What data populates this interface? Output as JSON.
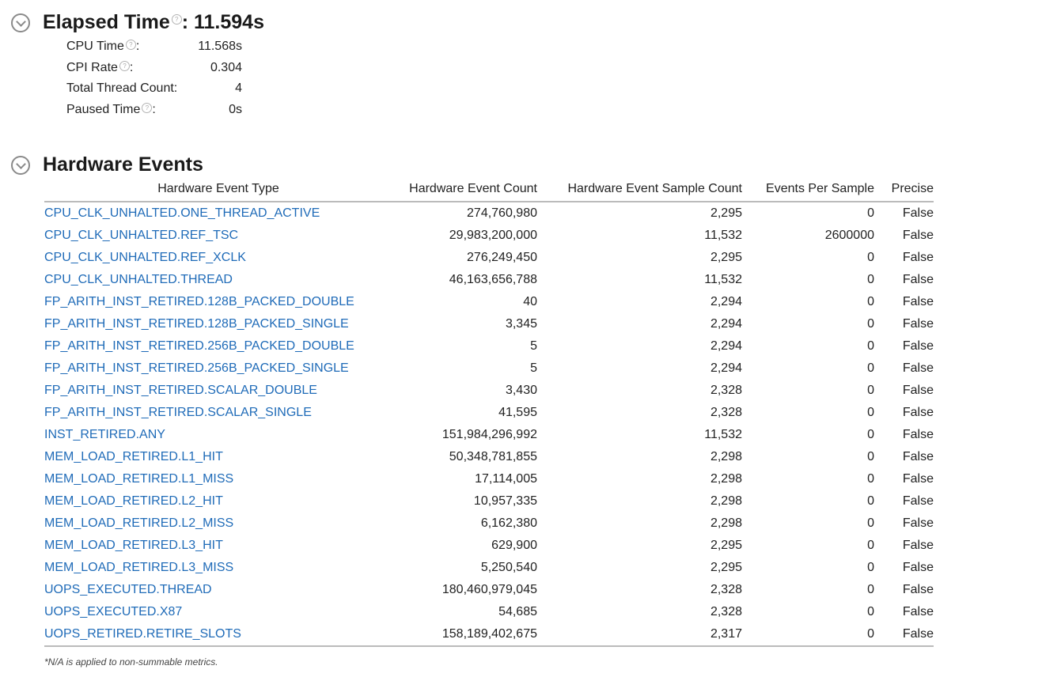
{
  "elapsed": {
    "title": "Elapsed Time",
    "value_text": ": 11.594s",
    "help_glyph": "?",
    "metrics": [
      {
        "label": "CPU Time",
        "has_help": true,
        "value": "11.568s"
      },
      {
        "label": "CPI Rate",
        "has_help": true,
        "value": "0.304"
      },
      {
        "label": "Total Thread Count:",
        "has_help": false,
        "value": "4"
      },
      {
        "label": "Paused Time",
        "has_help": true,
        "value": "0s"
      }
    ]
  },
  "hardware": {
    "title": "Hardware Events",
    "columns": [
      "Hardware Event Type",
      "Hardware Event Count",
      "Hardware Event Sample Count",
      "Events Per Sample",
      "Precise"
    ],
    "rows": [
      [
        "CPU_CLK_UNHALTED.ONE_THREAD_ACTIVE",
        "274,760,980",
        "2,295",
        "0",
        "False"
      ],
      [
        "CPU_CLK_UNHALTED.REF_TSC",
        "29,983,200,000",
        "11,532",
        "2600000",
        "False"
      ],
      [
        "CPU_CLK_UNHALTED.REF_XCLK",
        "276,249,450",
        "2,295",
        "0",
        "False"
      ],
      [
        "CPU_CLK_UNHALTED.THREAD",
        "46,163,656,788",
        "11,532",
        "0",
        "False"
      ],
      [
        "FP_ARITH_INST_RETIRED.128B_PACKED_DOUBLE",
        "40",
        "2,294",
        "0",
        "False"
      ],
      [
        "FP_ARITH_INST_RETIRED.128B_PACKED_SINGLE",
        "3,345",
        "2,294",
        "0",
        "False"
      ],
      [
        "FP_ARITH_INST_RETIRED.256B_PACKED_DOUBLE",
        "5",
        "2,294",
        "0",
        "False"
      ],
      [
        "FP_ARITH_INST_RETIRED.256B_PACKED_SINGLE",
        "5",
        "2,294",
        "0",
        "False"
      ],
      [
        "FP_ARITH_INST_RETIRED.SCALAR_DOUBLE",
        "3,430",
        "2,328",
        "0",
        "False"
      ],
      [
        "FP_ARITH_INST_RETIRED.SCALAR_SINGLE",
        "41,595",
        "2,328",
        "0",
        "False"
      ],
      [
        "INST_RETIRED.ANY",
        "151,984,296,992",
        "11,532",
        "0",
        "False"
      ],
      [
        "MEM_LOAD_RETIRED.L1_HIT",
        "50,348,781,855",
        "2,298",
        "0",
        "False"
      ],
      [
        "MEM_LOAD_RETIRED.L1_MISS",
        "17,114,005",
        "2,298",
        "0",
        "False"
      ],
      [
        "MEM_LOAD_RETIRED.L2_HIT",
        "10,957,335",
        "2,298",
        "0",
        "False"
      ],
      [
        "MEM_LOAD_RETIRED.L2_MISS",
        "6,162,380",
        "2,298",
        "0",
        "False"
      ],
      [
        "MEM_LOAD_RETIRED.L3_HIT",
        "629,900",
        "2,295",
        "0",
        "False"
      ],
      [
        "MEM_LOAD_RETIRED.L3_MISS",
        "5,250,540",
        "2,295",
        "0",
        "False"
      ],
      [
        "UOPS_EXECUTED.THREAD",
        "180,460,979,045",
        "2,328",
        "0",
        "False"
      ],
      [
        "UOPS_EXECUTED.X87",
        "54,685",
        "2,328",
        "0",
        "False"
      ],
      [
        "UOPS_RETIRED.RETIRE_SLOTS",
        "158,189,402,675",
        "2,317",
        "0",
        "False"
      ]
    ],
    "footnote": "*N/A is applied to non-summable metrics."
  },
  "colors": {
    "link": "#1f6bb8",
    "rule": "#bbbbbb",
    "icon": "#8a8a8a"
  },
  "icons": [
    "chevron-down-circle-icon",
    "question-help-icon"
  ]
}
